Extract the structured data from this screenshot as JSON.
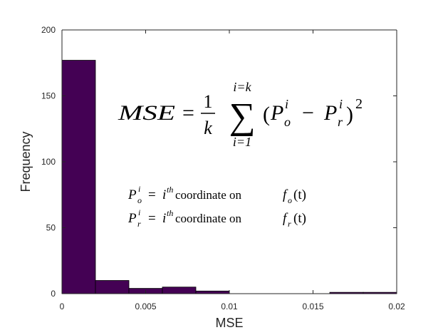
{
  "chart_data": {
    "type": "bar",
    "subtype": "histogram",
    "bin_edges": [
      0,
      0.002,
      0.004,
      0.006,
      0.008,
      0.01,
      0.012,
      0.014,
      0.016,
      0.018,
      0.02
    ],
    "values": [
      177,
      10,
      4,
      5,
      2,
      0,
      0,
      0,
      1,
      1
    ],
    "xlabel": "MSE",
    "ylabel": "Frequency",
    "xlim": [
      0,
      0.02
    ],
    "ylim": [
      0,
      200
    ],
    "xticks": [
      {
        "value": 0,
        "label": "0"
      },
      {
        "value": 0.005,
        "label": "0.005"
      },
      {
        "value": 0.01,
        "label": "0.01"
      },
      {
        "value": 0.015,
        "label": "0.015"
      },
      {
        "value": 0.02,
        "label": "0.02"
      }
    ],
    "yticks": [
      {
        "value": 0,
        "label": "0"
      },
      {
        "value": 50,
        "label": "50"
      },
      {
        "value": 100,
        "label": "100"
      },
      {
        "value": 150,
        "label": "150"
      },
      {
        "value": 200,
        "label": "200"
      }
    ],
    "bar_color": "#440154",
    "grid": false,
    "annotations": {
      "formula": {
        "lhs": "MSE",
        "equals": "=",
        "frac_num": "1",
        "frac_den": "k",
        "sum_symbol": "∑",
        "sum_upper": "i=k",
        "sum_lower": "i=1",
        "open_paren": "(",
        "P": "P",
        "o_sub": "o",
        "i_sup": "i",
        "minus": "−",
        "r_sub": "r",
        "close_paren": ")",
        "square": "2"
      },
      "def_o": {
        "P": "P",
        "sup": "i",
        "sub": "o",
        "eq": "=",
        "i": "i",
        "th": "th",
        "text": "coordinate on",
        "f": "f",
        "f_sub": "o",
        "arg": "(t)"
      },
      "def_r": {
        "P": "P",
        "sup": "i",
        "sub": "r",
        "eq": "=",
        "i": "i",
        "th": "th",
        "text": "coordinate on",
        "f": "f",
        "f_sub": "r",
        "arg": "(t)"
      }
    }
  }
}
